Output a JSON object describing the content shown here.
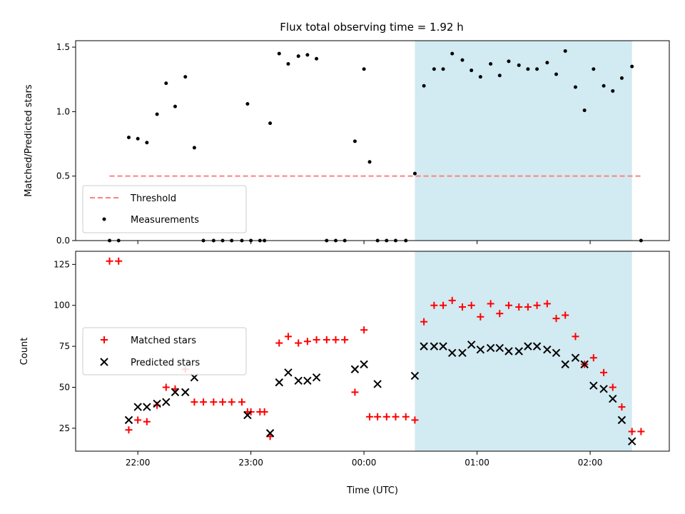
{
  "chart_data": [
    {
      "type": "scatter",
      "title": "Flux total observing time = 1.92 h",
      "xlabel": "",
      "ylabel": "Matched/Predicted stars",
      "xlim_hours": [
        21.45,
        26.7
      ],
      "ylim": [
        0,
        1.55
      ],
      "yticks": [
        0.0,
        0.5,
        1.0,
        1.5
      ],
      "ytick_labels": [
        "0.0",
        "0.5",
        "1.0",
        "1.5"
      ],
      "xticks": [
        22,
        23,
        24,
        25,
        26
      ],
      "shaded_span_hours": [
        24.45,
        26.37
      ],
      "shade_color": "#add8e6",
      "threshold": {
        "name": "Threshold",
        "value": 0.5,
        "x_range_hours": [
          21.75,
          26.45
        ],
        "color": "#ff7f7f"
      },
      "legend": {
        "placement": "lower left",
        "entries": [
          "Threshold",
          "Measurements"
        ]
      },
      "series": [
        {
          "name": "Measurements",
          "marker": "dot",
          "color": "#000000",
          "x_hours": [
            21.75,
            21.83,
            21.92,
            22.0,
            22.08,
            22.17,
            22.25,
            22.33,
            22.42,
            22.5,
            22.58,
            22.67,
            22.75,
            22.83,
            22.92,
            22.97,
            23.0,
            23.08,
            23.12,
            23.17,
            23.25,
            23.33,
            23.42,
            23.5,
            23.58,
            23.67,
            23.75,
            23.83,
            23.92,
            24.0,
            24.05,
            24.12,
            24.2,
            24.28,
            24.37,
            24.45,
            24.53,
            24.62,
            24.7,
            24.78,
            24.87,
            24.95,
            25.03,
            25.12,
            25.2,
            25.28,
            25.37,
            25.45,
            25.53,
            25.62,
            25.7,
            25.78,
            25.87,
            25.95,
            26.03,
            26.12,
            26.2,
            26.28,
            26.37,
            26.45
          ],
          "y": [
            0,
            0,
            0.8,
            0.79,
            0.76,
            0.98,
            1.22,
            1.04,
            1.27,
            0.72,
            0,
            0,
            0,
            0,
            0,
            1.06,
            0,
            0,
            0,
            0.91,
            1.45,
            1.37,
            1.43,
            1.44,
            1.41,
            0,
            0,
            0,
            0.77,
            1.33,
            0.61,
            0,
            0,
            0,
            0,
            0.52,
            1.2,
            1.33,
            1.33,
            1.45,
            1.4,
            1.32,
            1.27,
            1.37,
            1.28,
            1.39,
            1.36,
            1.33,
            1.33,
            1.38,
            1.29,
            1.47,
            1.19,
            1.01,
            1.33,
            1.2,
            1.16,
            1.26,
            1.35,
            0
          ]
        }
      ]
    },
    {
      "type": "scatter",
      "title": "",
      "xlabel": "Time (UTC)",
      "ylabel": "Count",
      "xlim_hours": [
        21.45,
        26.7
      ],
      "ylim": [
        11,
        133
      ],
      "yticks": [
        25,
        50,
        75,
        100,
        125
      ],
      "ytick_labels": [
        "25",
        "50",
        "75",
        "100",
        "125"
      ],
      "xticks": [
        22,
        23,
        24,
        25,
        26
      ],
      "xtick_labels": [
        "22:00",
        "23:00",
        "00:00",
        "01:00",
        "02:00"
      ],
      "shaded_span_hours": [
        24.45,
        26.37
      ],
      "shade_color": "#add8e6",
      "legend": {
        "placement": "center left",
        "entries": [
          "Matched stars",
          "Predicted stars"
        ]
      },
      "series": [
        {
          "name": "Matched stars",
          "marker": "plus",
          "color": "#ff0000",
          "x_hours": [
            21.75,
            21.83,
            21.92,
            22.0,
            22.08,
            22.17,
            22.25,
            22.33,
            22.42,
            22.5,
            22.58,
            22.67,
            22.75,
            22.83,
            22.92,
            22.97,
            23.0,
            23.08,
            23.12,
            23.17,
            23.25,
            23.33,
            23.42,
            23.5,
            23.58,
            23.67,
            23.75,
            23.83,
            23.92,
            24.0,
            24.05,
            24.12,
            24.2,
            24.28,
            24.37,
            24.45,
            24.53,
            24.62,
            24.7,
            24.78,
            24.87,
            24.95,
            25.03,
            25.12,
            25.2,
            25.28,
            25.37,
            25.45,
            25.53,
            25.62,
            25.7,
            25.78,
            25.87,
            25.95,
            26.03,
            26.12,
            26.2,
            26.28,
            26.37,
            26.45
          ],
          "y": [
            127,
            127,
            24,
            30,
            29,
            39,
            50,
            49,
            61,
            41,
            41,
            41,
            41,
            41,
            41,
            35,
            35,
            35,
            35,
            20,
            77,
            81,
            77,
            78,
            79,
            79,
            79,
            79,
            47,
            85,
            32,
            32,
            32,
            32,
            32,
            30,
            90,
            100,
            100,
            103,
            99,
            100,
            93,
            101,
            95,
            100,
            99,
            99,
            100,
            101,
            92,
            94,
            81,
            64,
            68,
            59,
            50,
            38,
            23,
            23
          ]
        },
        {
          "name": "Predicted stars",
          "marker": "x",
          "color": "#000000",
          "x_hours": [
            21.92,
            22.0,
            22.08,
            22.17,
            22.25,
            22.33,
            22.42,
            22.5,
            22.97,
            23.17,
            23.25,
            23.33,
            23.42,
            23.5,
            23.58,
            23.92,
            24.0,
            24.12,
            24.45,
            24.53,
            24.62,
            24.7,
            24.78,
            24.87,
            24.95,
            25.03,
            25.12,
            25.2,
            25.28,
            25.37,
            25.45,
            25.53,
            25.62,
            25.7,
            25.78,
            25.87,
            25.95,
            26.03,
            26.12,
            26.2,
            26.28,
            26.37
          ],
          "y": [
            30,
            38,
            38,
            40,
            41,
            47,
            47,
            56,
            33,
            22,
            53,
            59,
            54,
            54,
            56,
            61,
            64,
            52,
            57,
            75,
            75,
            75,
            71,
            71,
            76,
            73,
            74,
            74,
            72,
            72,
            75,
            75,
            73,
            71,
            64,
            68,
            64,
            51,
            49,
            43,
            30,
            17
          ]
        }
      ]
    }
  ]
}
